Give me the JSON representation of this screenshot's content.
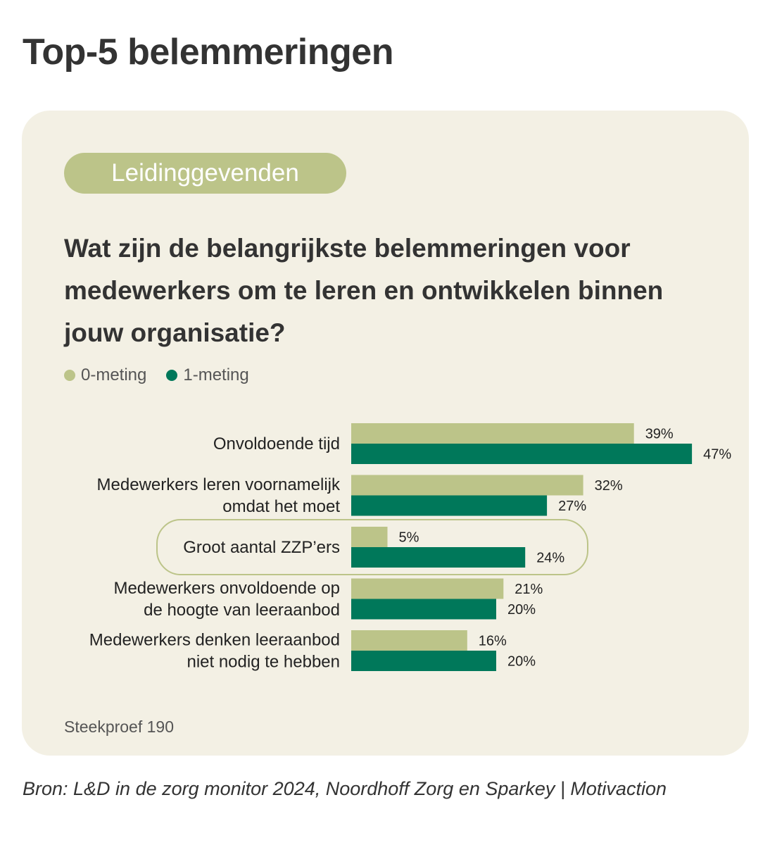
{
  "page_title": "Top-5 belemmeringen",
  "pill_label": "Leidinggevenden",
  "question": "Wat zijn de belangrijkste belemmeringen voor medewerkers om te leren en ontwikkelen binnen jouw organisatie?",
  "sample_note": "Steekproef 190",
  "source": "Bron: L&D in de zorg monitor 2024, Noordhoff Zorg en Sparkey | Motivaction",
  "colors": {
    "series_0": "#bcc489",
    "series_1": "#00785a",
    "card_bg": "#f3f0e4",
    "highlight_border": "#bcc489"
  },
  "chart_data": {
    "type": "bar",
    "orientation": "horizontal",
    "categories": [
      [
        "Onvoldoende tijd"
      ],
      [
        "Medewerkers leren voornamelijk",
        "omdat het moet"
      ],
      [
        "Groot aantal ZZP’ers"
      ],
      [
        "Medewerkers onvoldoende op",
        "de hoogte van leeraanbod"
      ],
      [
        "Medewerkers denken leeraanbod",
        "niet nodig te hebben"
      ]
    ],
    "series": [
      {
        "name": "0-meting",
        "values": [
          39,
          32,
          5,
          21,
          16
        ]
      },
      {
        "name": "1-meting",
        "values": [
          47,
          27,
          24,
          20,
          20
        ]
      }
    ],
    "value_suffix": "%",
    "highlighted_category_index": 2,
    "legend_position": "top-left",
    "grid": false
  }
}
